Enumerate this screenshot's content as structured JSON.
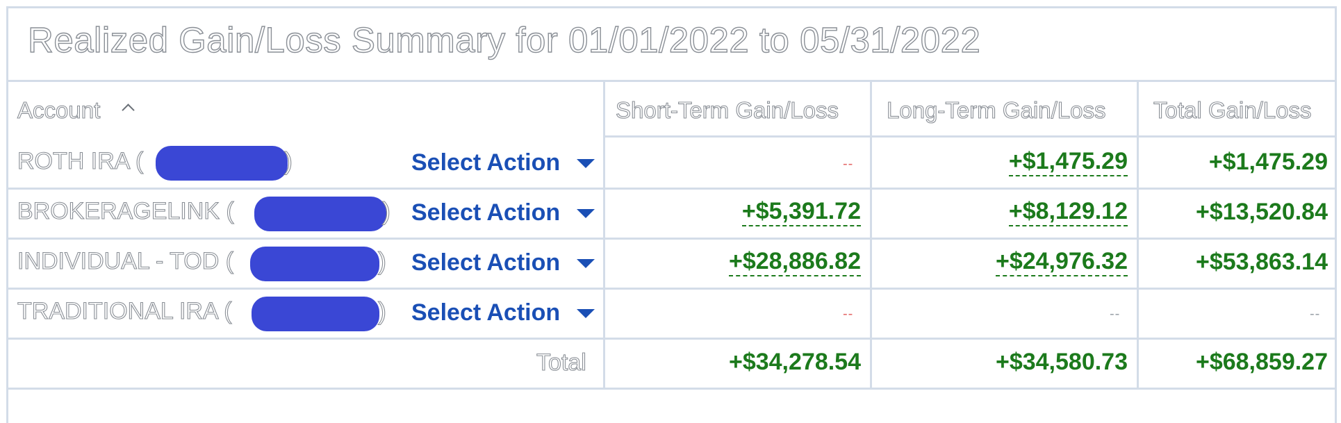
{
  "title": "Realized Gain/Loss Summary for 01/01/2022 to 05/31/2022",
  "columns": {
    "account": "Account",
    "short_term": "Short-Term Gain/Loss",
    "long_term": "Long-Term Gain/Loss",
    "total": "Total Gain/Loss"
  },
  "sort_indicator": "ascending",
  "rows": [
    {
      "account": "ROTH IRA (",
      "close_paren": ")",
      "action": "Select Action",
      "short_term": "--",
      "long_term": "+$1,475.29",
      "total": "+$1,475.29"
    },
    {
      "account": "BROKERAGELINK (",
      "close_paren": ")",
      "action": "Select Action",
      "short_term": "+$5,391.72",
      "long_term": "+$8,129.12",
      "total": "+$13,520.84"
    },
    {
      "account": "INDIVIDUAL - TOD (",
      "close_paren": ")",
      "action": "Select Action",
      "short_term": "+$28,886.82",
      "long_term": "+$24,976.32",
      "total": "+$53,863.14"
    },
    {
      "account": "TRADITIONAL IRA (",
      "close_paren": ")",
      "action": "Select Action",
      "short_term": "--",
      "long_term": "--",
      "total": "--"
    }
  ],
  "totals": {
    "label": "Total",
    "short_term": "+$34,278.54",
    "long_term": "+$34,580.73",
    "total": "+$68,859.27"
  },
  "colors": {
    "gain": "#1c7a1c",
    "action_link": "#1a4fb5",
    "redaction": "#3a47d5",
    "grid": "#d3dce8"
  }
}
